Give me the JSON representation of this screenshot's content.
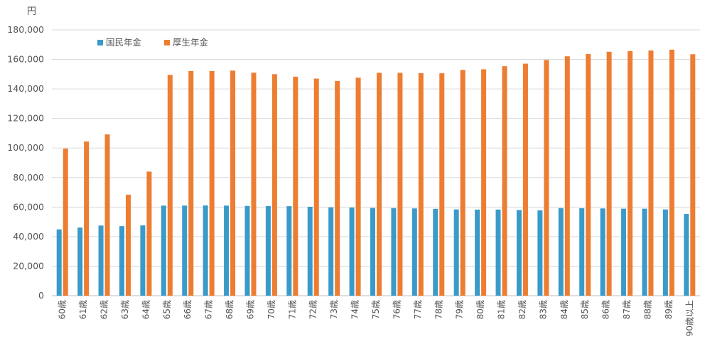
{
  "chart_data": {
    "type": "bar",
    "unit": "円",
    "categories": [
      "60歳",
      "61歳",
      "62歳",
      "63歳",
      "64歳",
      "65歳",
      "66歳",
      "67歳",
      "68歳",
      "69歳",
      "70歳",
      "71歳",
      "72歳",
      "73歳",
      "74歳",
      "75歳",
      "76歳",
      "77歳",
      "78歳",
      "79歳",
      "80歳",
      "81歳",
      "82歳",
      "83歳",
      "84歳",
      "85歳",
      "86歳",
      "87歳",
      "88歳",
      "89歳",
      "90歳以上"
    ],
    "series": [
      {
        "name": "国民年金",
        "color": "#3a9bc9",
        "values": [
          44900,
          46100,
          47500,
          47100,
          47600,
          61000,
          61000,
          61100,
          61000,
          60800,
          60700,
          60600,
          60200,
          59800,
          59700,
          59400,
          59300,
          59100,
          58800,
          58400,
          58300,
          58300,
          58000,
          57800,
          59300,
          59200,
          59100,
          58900,
          58900,
          58400,
          55300
        ]
      },
      {
        "name": "厚生年金",
        "color": "#ed7d31",
        "values": [
          99600,
          104400,
          109200,
          68400,
          84000,
          149500,
          152100,
          152100,
          152400,
          151000,
          150000,
          148300,
          147000,
          145400,
          147600,
          150900,
          150900,
          150700,
          150600,
          152900,
          153300,
          155400,
          157100,
          159600,
          162100,
          163600,
          165200,
          165600,
          166000,
          166600,
          163500
        ]
      }
    ],
    "ylim": [
      0,
      180000
    ],
    "yticks": [
      0,
      20000,
      40000,
      60000,
      80000,
      100000,
      120000,
      140000,
      160000,
      180000
    ],
    "ytick_labels": [
      "0",
      "20,000",
      "40,000",
      "60,000",
      "80,000",
      "100,000",
      "120,000",
      "140,000",
      "160,000",
      "180,000"
    ],
    "grid": true,
    "legend_position": "top-left"
  }
}
